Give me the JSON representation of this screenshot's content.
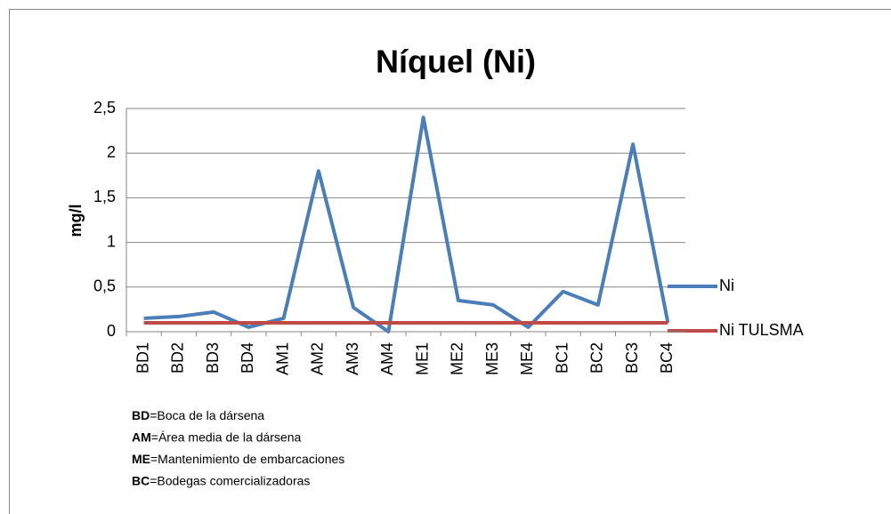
{
  "chart_data": {
    "type": "line",
    "title": "Níquel (Ni)",
    "y_label": "mg/l",
    "categories": [
      "BD1",
      "BD2",
      "BD3",
      "BD4",
      "AM1",
      "AM2",
      "AM3",
      "AM4",
      "ME1",
      "ME2",
      "ME3",
      "ME4",
      "BC1",
      "BC2",
      "BC3",
      "BC4"
    ],
    "series": [
      {
        "name": "Ni",
        "color": "#4a7ebb",
        "values": [
          0.15,
          0.17,
          0.22,
          0.05,
          0.15,
          1.8,
          0.27,
          0,
          2.4,
          0.35,
          0.3,
          0.05,
          0.45,
          0.3,
          2.1,
          0.1
        ]
      },
      {
        "name": "Ni TULSMA",
        "color": "#be4b48",
        "values": [
          0.1,
          0.1,
          0.1,
          0.1,
          0.1,
          0.1,
          0.1,
          0.1,
          0.1,
          0.1,
          0.1,
          0.1,
          0.1,
          0.1,
          0.1,
          0.1
        ]
      }
    ],
    "ylim": [
      0,
      2.5
    ],
    "yticks": [
      0,
      {
        "value": 0.5,
        "label": "0,5"
      },
      1,
      {
        "value": 1.5,
        "label": "1,5"
      },
      2,
      {
        "value": 2.5,
        "label": "2,5"
      }
    ],
    "grid": true,
    "legend": "right",
    "notes": [
      {
        "abbr": "BD",
        "text": "=Boca de la dársena"
      },
      {
        "abbr": "AM",
        "text": "=Área media de la dársena"
      },
      {
        "abbr": "ME",
        "text": "=Mantenimiento de embarcaciones"
      },
      {
        "abbr": "BC",
        "text": "=Bodegas comercializadoras"
      }
    ]
  }
}
